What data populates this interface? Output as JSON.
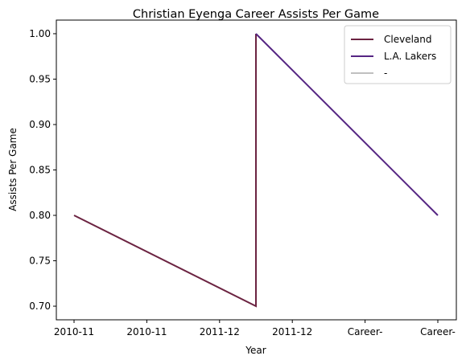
{
  "chart_data": {
    "type": "line",
    "title": "Christian Eyenga Career Assists Per Game",
    "xlabel": "Year",
    "ylabel": "Assists Per Game",
    "categories": [
      "2010-11",
      "2010-11",
      "2011-12",
      "2011-12",
      "Career-",
      "Career-"
    ],
    "ylim": [
      0.685,
      1.015
    ],
    "yticks": [
      "0.70",
      "0.75",
      "0.80",
      "0.85",
      "0.90",
      "0.95",
      "1.00"
    ],
    "grid": false,
    "legend_position": "top-right",
    "series": [
      {
        "name": "Cleveland",
        "color": "#6b2341",
        "points": [
          [
            0,
            0.8
          ],
          [
            2.5,
            0.7
          ],
          [
            2.5,
            1.0
          ]
        ]
      },
      {
        "name": "L.A. Lakers",
        "color": "#552583",
        "points": [
          [
            2.5,
            1.0
          ],
          [
            5,
            0.8
          ]
        ]
      },
      {
        "name": "-",
        "color": "#c0c0c0",
        "points": []
      }
    ]
  }
}
